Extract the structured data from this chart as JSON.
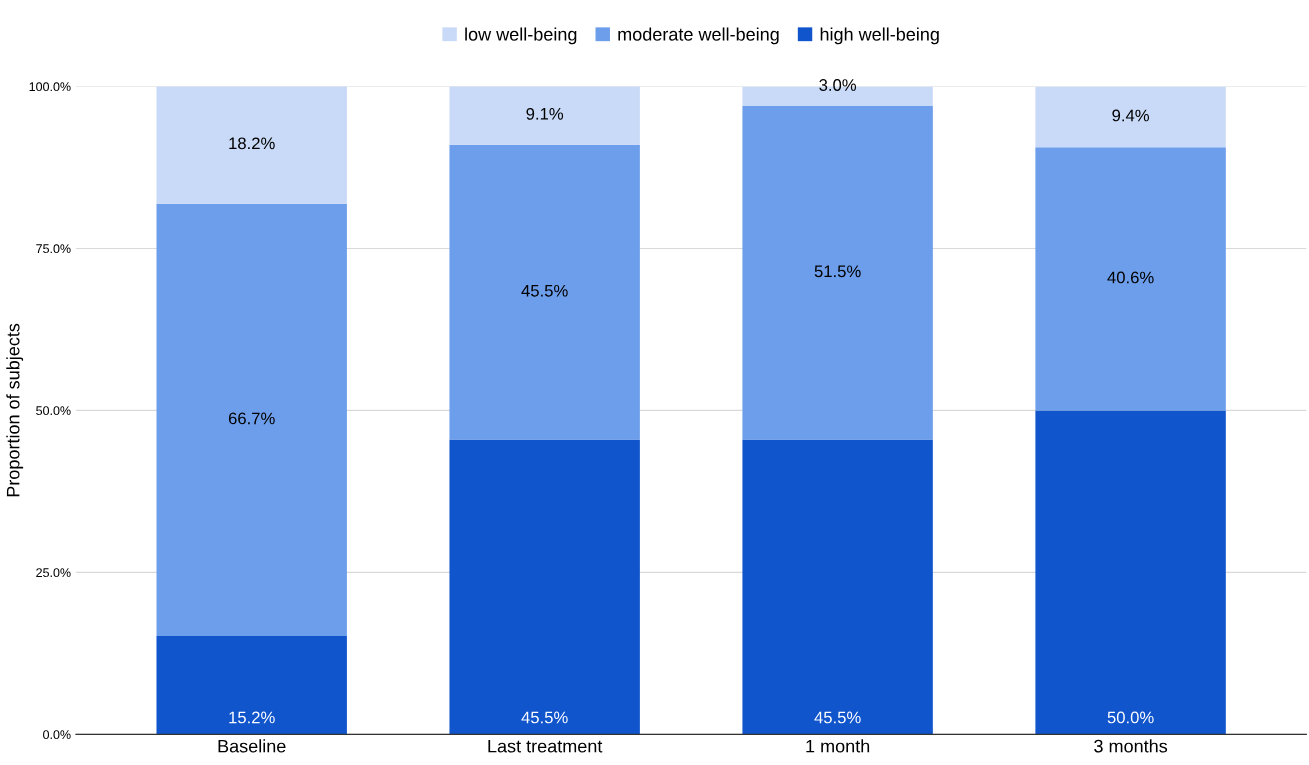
{
  "chart_data": {
    "type": "bar",
    "stacked": true,
    "ylabel": "Proportion of subjects",
    "categories": [
      "Baseline",
      "Last treatment",
      "1 month",
      "3 months"
    ],
    "series": [
      {
        "name": "high well-being",
        "color": "#1155cc",
        "values": [
          15.2,
          45.5,
          45.5,
          50.0
        ],
        "value_labels": [
          "15.2%",
          "45.5%",
          "45.5%",
          "50.0%"
        ]
      },
      {
        "name": "moderate well-being",
        "color": "#6d9eeb",
        "values": [
          66.7,
          45.5,
          51.5,
          40.6
        ],
        "value_labels": [
          "66.7%",
          "45.5%",
          "51.5%",
          "40.6%"
        ]
      },
      {
        "name": "low well-being",
        "color": "#c9daf8",
        "values": [
          18.2,
          9.1,
          3.0,
          9.4
        ],
        "value_labels": [
          "18.2%",
          "9.1%",
          "3.0%",
          "9.4%"
        ]
      }
    ],
    "ylim": [
      0,
      100
    ],
    "yticks": [
      {
        "value": 0,
        "label": "0.0%"
      },
      {
        "value": 25,
        "label": "25.0%"
      },
      {
        "value": 50,
        "label": "50.0%"
      },
      {
        "value": 75,
        "label": "75.0%"
      },
      {
        "value": 100,
        "label": "100.0%"
      }
    ],
    "grid": "y",
    "legend": "top"
  }
}
